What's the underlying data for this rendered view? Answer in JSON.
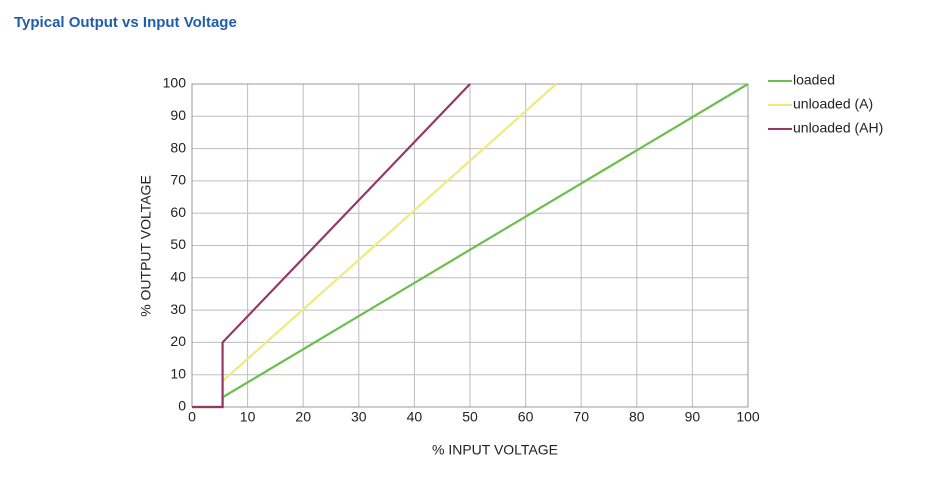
{
  "chart_data": {
    "type": "line",
    "title": "Typical Output vs Input Voltage",
    "x_label": "% INPUT VOLTAGE",
    "y_label": "% OUTPUT VOLTAGE",
    "xlim": [
      0,
      100
    ],
    "ylim": [
      0,
      100
    ],
    "xticks": [
      0,
      10,
      20,
      30,
      40,
      50,
      60,
      70,
      80,
      90,
      100
    ],
    "yticks": [
      0,
      10,
      20,
      30,
      40,
      50,
      60,
      70,
      80,
      90,
      100
    ],
    "grid": true,
    "legend": "right",
    "series": [
      {
        "name": "loaded",
        "color": "#6abf4b",
        "x": [
          0,
          5.5,
          5.5,
          100
        ],
        "values": [
          0,
          0,
          3,
          100
        ]
      },
      {
        "name": "unloaded (A)",
        "color": "#f1e97e",
        "x": [
          0,
          5.5,
          5.5,
          65.5
        ],
        "values": [
          0,
          0,
          8,
          100
        ]
      },
      {
        "name": "unloaded (AH)",
        "color": "#94386a",
        "x": [
          0,
          5.5,
          5.5,
          50
        ],
        "values": [
          0,
          0,
          20,
          100
        ]
      }
    ]
  }
}
